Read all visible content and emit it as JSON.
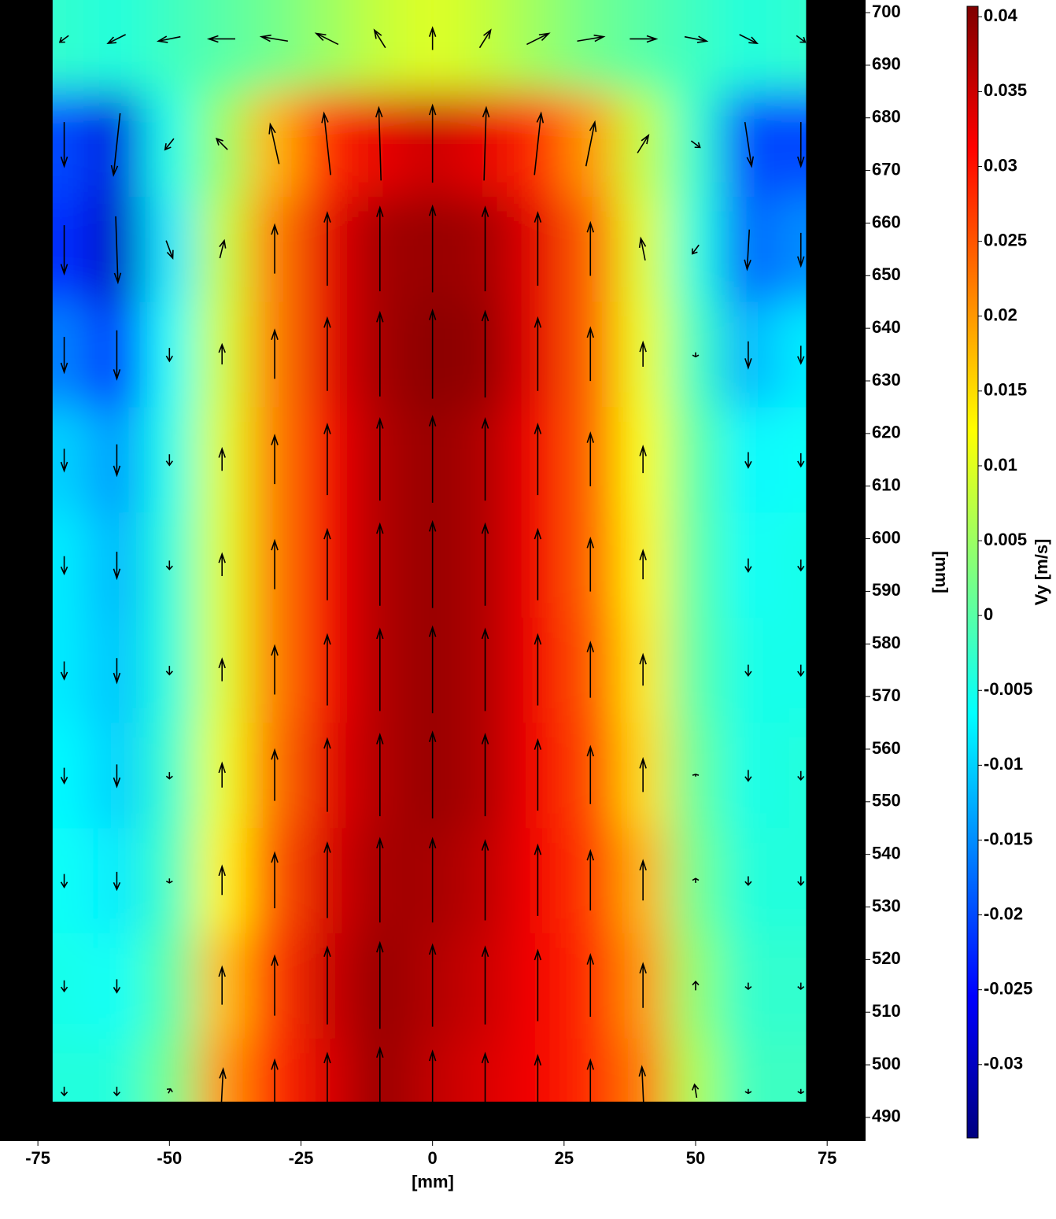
{
  "chart_data": {
    "type": "vector-heatmap",
    "xlabel": "[mm]",
    "ylabel": "[mm]",
    "xlim": [
      -82.2,
      82.3
    ],
    "ylim": [
      485.5,
      702.4
    ],
    "xticks": [
      -75,
      -50,
      -25,
      0,
      25,
      50,
      75
    ],
    "yticks": [
      490,
      500,
      510,
      520,
      530,
      540,
      550,
      560,
      570,
      580,
      590,
      600,
      610,
      620,
      630,
      640,
      650,
      660,
      670,
      680,
      690,
      700
    ],
    "x": [
      -70,
      -60,
      -50,
      -40,
      -30,
      -20,
      -10,
      0,
      10,
      20,
      30,
      40,
      50,
      60,
      70
    ],
    "y": [
      695,
      675,
      655,
      635,
      615,
      595,
      575,
      555,
      535,
      515,
      495
    ],
    "vy": [
      [
        -0.003,
        -0.004,
        -0.002,
        0,
        0.002,
        0.005,
        0.008,
        0.01,
        0.008,
        0.005,
        0.002,
        0,
        -0.002,
        -0.004,
        -0.003
      ],
      [
        -0.02,
        -0.028,
        -0.005,
        0.005,
        0.018,
        0.028,
        0.033,
        0.035,
        0.033,
        0.028,
        0.02,
        0.008,
        -0.003,
        -0.02,
        -0.02
      ],
      [
        -0.022,
        -0.03,
        -0.008,
        0.008,
        0.022,
        0.033,
        0.038,
        0.039,
        0.038,
        0.033,
        0.024,
        0.01,
        -0.004,
        -0.018,
        -0.015
      ],
      [
        -0.016,
        -0.022,
        -0.006,
        0.009,
        0.022,
        0.033,
        0.038,
        0.04,
        0.039,
        0.033,
        0.024,
        0.011,
        -0.002,
        -0.012,
        -0.008
      ],
      [
        -0.01,
        -0.014,
        -0.005,
        0.01,
        0.022,
        0.032,
        0.037,
        0.039,
        0.037,
        0.032,
        0.024,
        0.012,
        0,
        -0.007,
        -0.006
      ],
      [
        -0.008,
        -0.012,
        -0.004,
        0.01,
        0.022,
        0.032,
        0.037,
        0.039,
        0.037,
        0.032,
        0.024,
        0.013,
        0,
        -0.006,
        -0.005
      ],
      [
        -0.008,
        -0.011,
        -0.004,
        0.01,
        0.022,
        0.032,
        0.037,
        0.039,
        0.037,
        0.032,
        0.025,
        0.014,
        0,
        -0.005,
        -0.005
      ],
      [
        -0.007,
        -0.01,
        -0.003,
        0.011,
        0.023,
        0.033,
        0.037,
        0.039,
        0.037,
        0.032,
        0.026,
        0.015,
        0.001,
        -0.005,
        -0.004
      ],
      [
        -0.006,
        -0.008,
        -0.002,
        0.013,
        0.025,
        0.034,
        0.038,
        0.038,
        0.036,
        0.032,
        0.027,
        0.018,
        0.002,
        -0.004,
        -0.004
      ],
      [
        -0.005,
        -0.006,
        0,
        0.017,
        0.027,
        0.035,
        0.039,
        0.037,
        0.035,
        0.032,
        0.028,
        0.02,
        0.004,
        -0.003,
        -0.003
      ],
      [
        -0.004,
        -0.004,
        0.002,
        0.02,
        0.028,
        0.034,
        0.039,
        0.036,
        0.034,
        0.032,
        0.028,
        0.022,
        0.006,
        -0.002,
        -0.002
      ]
    ],
    "vx": [
      [
        -0.004,
        -0.008,
        -0.01,
        -0.012,
        -0.012,
        -0.01,
        -0.005,
        0,
        0.005,
        0.01,
        0.012,
        0.012,
        0.01,
        0.008,
        0.004
      ],
      [
        0,
        -0.003,
        -0.004,
        -0.005,
        -0.004,
        -0.003,
        -0.001,
        0,
        0.001,
        0.003,
        0.004,
        0.005,
        0.004,
        0.003,
        0
      ],
      [
        0,
        0.001,
        0.003,
        0.002,
        0,
        0,
        0,
        0,
        0,
        0,
        0,
        -0.002,
        -0.003,
        -0.001,
        0
      ],
      [
        0,
        0,
        0,
        0,
        0,
        0,
        0,
        0,
        0,
        0,
        0,
        0,
        0,
        0,
        0
      ],
      [
        0,
        0,
        0,
        0,
        0,
        0,
        0,
        0,
        0,
        0,
        0,
        0,
        0,
        0,
        0
      ],
      [
        0,
        0,
        0,
        0,
        0,
        0,
        0,
        0,
        0,
        0,
        0,
        0,
        0,
        0,
        0
      ],
      [
        0,
        0,
        0,
        0,
        0,
        0,
        0,
        0,
        0,
        0,
        0,
        0,
        0,
        0,
        0
      ],
      [
        0,
        0,
        0,
        0,
        0,
        0,
        0,
        0,
        0,
        0,
        0,
        0,
        0,
        0,
        0
      ],
      [
        0,
        0,
        0,
        0,
        0,
        0,
        0,
        0,
        0,
        0,
        0,
        0,
        0,
        0,
        0
      ],
      [
        0,
        0,
        0,
        0,
        0,
        0,
        0,
        0,
        0,
        0,
        0,
        0,
        0,
        0,
        0
      ],
      [
        0,
        0,
        0.001,
        0.001,
        0,
        0,
        0,
        0,
        0,
        0,
        0,
        -0.001,
        -0.001,
        0,
        0
      ]
    ],
    "colorbar": {
      "label": "Vy [m/s]",
      "lim": [
        -0.0349,
        0.0407
      ],
      "ticks": [
        0.04,
        0.035,
        0.03,
        0.025,
        0.02,
        0.015,
        0.01,
        0.005,
        0,
        -0.005,
        -0.01,
        -0.015,
        -0.02,
        -0.025,
        -0.03
      ]
    }
  }
}
